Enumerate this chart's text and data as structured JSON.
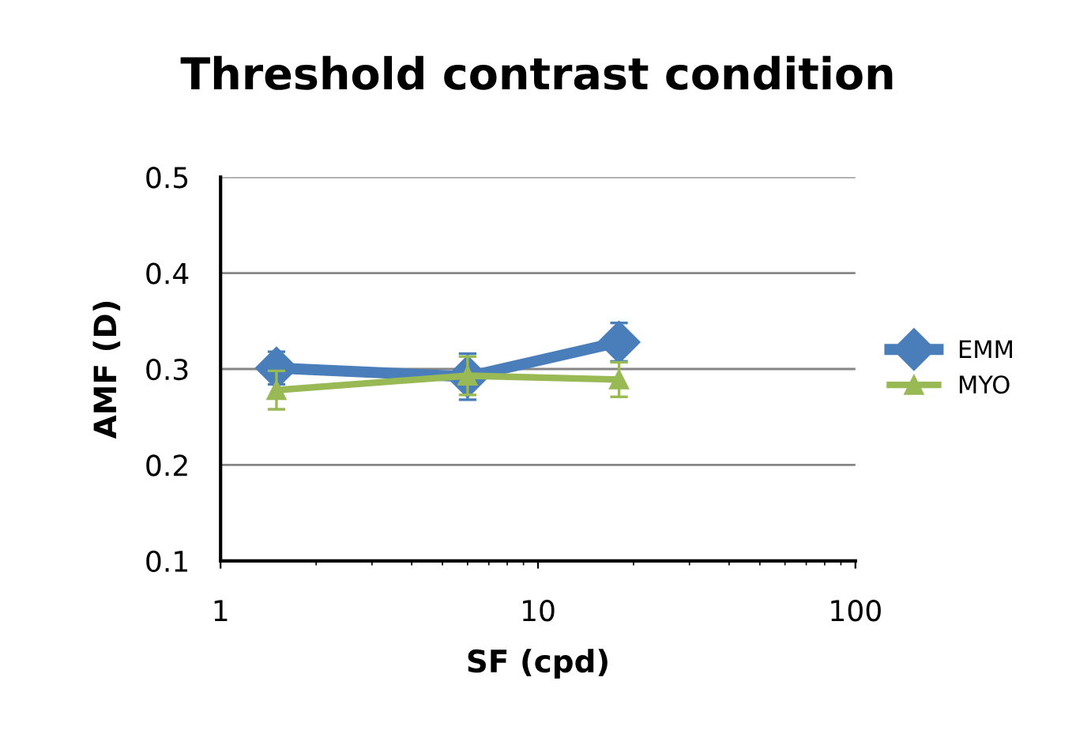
{
  "chart_data": {
    "type": "line",
    "title": "Threshold contrast condition",
    "xlabel": "SF (cpd)",
    "ylabel": "AMF (D)",
    "x": [
      1.5,
      6,
      18
    ],
    "series": [
      {
        "name": "EMM",
        "color": "#4a7ebb",
        "marker": "diamond",
        "values": [
          0.301,
          0.292,
          0.328
        ],
        "errors": [
          0.017,
          0.024,
          0.02
        ]
      },
      {
        "name": "MYO",
        "color": "#98b954",
        "marker": "triangle",
        "values": [
          0.278,
          0.293,
          0.289
        ],
        "errors": [
          0.02,
          0.02,
          0.018
        ]
      }
    ],
    "log": "x",
    "xlim": [
      1,
      100
    ],
    "xticks": [
      1,
      10,
      100
    ],
    "ylim": [
      0.1,
      0.5
    ],
    "yticks": [
      0.1,
      0.2,
      0.3,
      0.4,
      0.5
    ],
    "grid": "y",
    "legend": "right",
    "line_style": "solid"
  }
}
